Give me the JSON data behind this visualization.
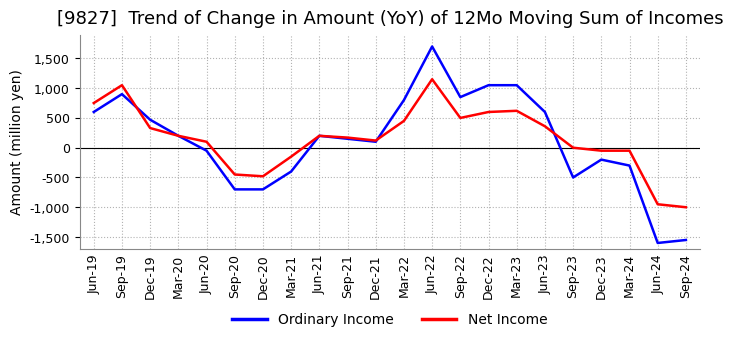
{
  "title": "[9827]  Trend of Change in Amount (YoY) of 12Mo Moving Sum of Incomes",
  "ylabel": "Amount (million yen)",
  "ylim": [
    -1700,
    1900
  ],
  "yticks": [
    -1500,
    -1000,
    -500,
    0,
    500,
    1000,
    1500
  ],
  "x_labels": [
    "Jun-19",
    "Sep-19",
    "Dec-19",
    "Mar-20",
    "Jun-20",
    "Sep-20",
    "Dec-20",
    "Mar-21",
    "Jun-21",
    "Sep-21",
    "Dec-21",
    "Mar-22",
    "Jun-22",
    "Sep-22",
    "Dec-22",
    "Mar-23",
    "Jun-23",
    "Sep-23",
    "Dec-23",
    "Mar-24",
    "Jun-24",
    "Sep-24"
  ],
  "ordinary_income": [
    600,
    900,
    470,
    200,
    -50,
    -700,
    -700,
    -400,
    200,
    150,
    100,
    800,
    1700,
    850,
    1050,
    1050,
    600,
    -500,
    -200,
    -300,
    -1600,
    -1550
  ],
  "net_income": [
    750,
    1050,
    330,
    200,
    100,
    -450,
    -480,
    -150,
    200,
    170,
    120,
    450,
    1150,
    500,
    600,
    620,
    360,
    0,
    -50,
    -50,
    -950,
    -1000
  ],
  "ordinary_color": "#0000ff",
  "net_color": "#ff0000",
  "background_color": "#ffffff",
  "plot_bg_color": "#ffffff",
  "grid_color": "#aaaaaa",
  "title_fontsize": 13,
  "axis_fontsize": 10,
  "tick_fontsize": 9,
  "legend_fontsize": 10,
  "line_width": 1.8
}
